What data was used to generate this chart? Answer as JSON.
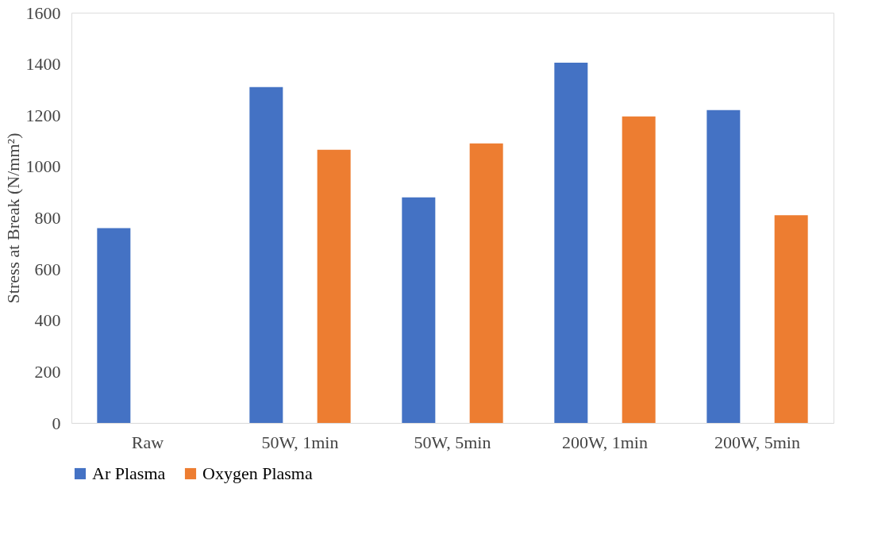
{
  "chart_data": {
    "type": "bar",
    "ylabel": "Stress at Break (N/mm²)",
    "categories": [
      "Raw",
      "50W, 1min",
      "50W, 5min",
      "200W, 1min",
      "200W, 5min"
    ],
    "series": [
      {
        "name": "Ar Plasma",
        "color": "#4472c4",
        "values": [
          760,
          1310,
          880,
          1405,
          1220
        ]
      },
      {
        "name": "Oxygen Plasma",
        "color": "#ed7d31",
        "values": [
          null,
          1065,
          1090,
          1195,
          810
        ]
      }
    ],
    "ylim": [
      0,
      1600
    ],
    "yticks": [
      0,
      200,
      400,
      600,
      800,
      1000,
      1200,
      1400,
      1600
    ],
    "grid": false,
    "legend": "bottom"
  }
}
